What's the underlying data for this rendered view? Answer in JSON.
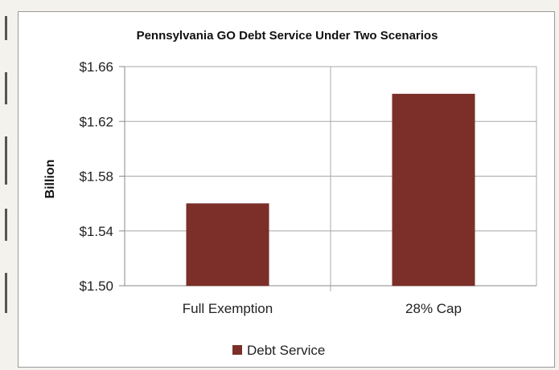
{
  "chart_data": {
    "type": "bar",
    "title": "Pennsylvania GO Debt Service Under Two Scenarios",
    "xlabel": "",
    "ylabel": "Billion",
    "categories": [
      "Full Exemption",
      "28% Cap"
    ],
    "series": [
      {
        "name": "Debt Service",
        "values": [
          1.56,
          1.64
        ],
        "color": "#7b2f28"
      }
    ],
    "ylim": [
      1.5,
      1.66
    ],
    "yticks": [
      1.5,
      1.54,
      1.58,
      1.62,
      1.66
    ],
    "ytick_labels": [
      "$1.50",
      "$1.54",
      "$1.58",
      "$1.62",
      "$1.66"
    ],
    "grid": true,
    "legend": "bottom"
  }
}
